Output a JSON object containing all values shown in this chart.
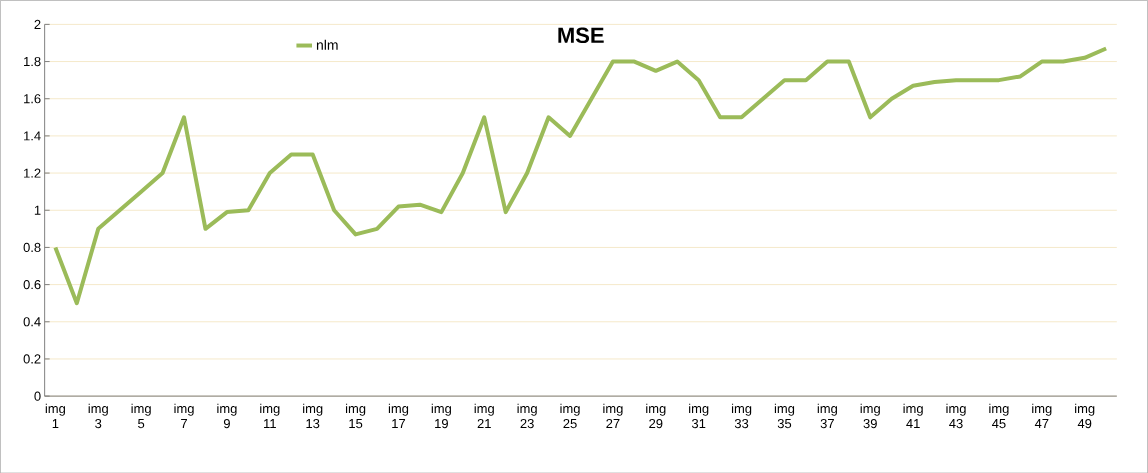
{
  "chart_data": {
    "type": "line",
    "title": "MSE",
    "categories": [
      "img 1",
      null,
      "img 3",
      null,
      "img 5",
      null,
      "img 7",
      null,
      "img 9",
      null,
      "img 11",
      null,
      "img 13",
      null,
      "img 15",
      null,
      "img 17",
      null,
      "img 19",
      null,
      "img 21",
      null,
      "img 23",
      null,
      "img 25",
      null,
      "img 27",
      null,
      "img 29",
      null,
      "img 31",
      null,
      "img 33",
      null,
      "img 35",
      null,
      "img 37",
      null,
      "img 39",
      null,
      "img 41",
      null,
      "img 43",
      null,
      "img 45",
      null,
      "img 47",
      null,
      "img 49",
      null
    ],
    "series": [
      {
        "name": "nlm",
        "color": "#9bbb59",
        "values": [
          0.8,
          0.5,
          0.9,
          1.0,
          1.1,
          1.2,
          1.5,
          0.9,
          0.99,
          1.0,
          1.2,
          1.3,
          1.3,
          1.0,
          0.87,
          0.9,
          1.02,
          1.03,
          0.99,
          1.2,
          1.5,
          0.99,
          1.2,
          1.5,
          1.4,
          1.6,
          1.8,
          1.8,
          1.75,
          1.8,
          1.7,
          1.5,
          1.5,
          1.6,
          1.7,
          1.7,
          1.8,
          1.8,
          1.5,
          1.6,
          1.67,
          1.69,
          1.7,
          1.7,
          1.7,
          1.72,
          1.8,
          1.8,
          1.82,
          1.87
        ]
      }
    ],
    "ylim": [
      0,
      2
    ],
    "yticks": [
      0,
      0.2,
      0.4,
      0.6,
      0.8,
      1,
      1.2,
      1.4,
      1.6,
      1.8,
      2
    ],
    "grid": "y",
    "legend": "top",
    "marker": "none",
    "line_style": "solid"
  }
}
